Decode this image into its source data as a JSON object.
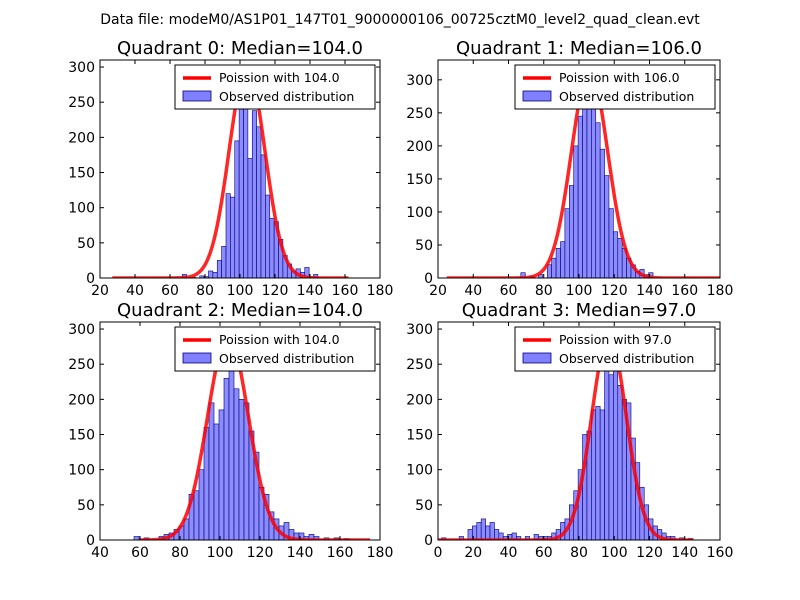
{
  "suptitle": "Data file: modeM0/AS1P01_147T01_9000000106_00725cztM0_level2_quad_clean.evt",
  "colors": {
    "curve": "#ff0000",
    "bar_fill": "#7f7fff",
    "bar_edge": "#00007a"
  },
  "chart_data": [
    {
      "type": "bar",
      "title": "Quadrant 0: Median=104.0",
      "xlim": [
        20,
        180
      ],
      "ylim": [
        0,
        310
      ],
      "xticks": [
        20,
        40,
        60,
        80,
        100,
        120,
        140,
        160,
        180
      ],
      "yticks": [
        0,
        50,
        100,
        150,
        200,
        250,
        300
      ],
      "bin_width": 2.5,
      "legend": {
        "curve_label": "Poission with 104.0",
        "hist_label": "Observed distribution",
        "loc": "upper right"
      },
      "curve": {
        "mean": 104,
        "sigma": 10.2,
        "peak": 300,
        "range": [
          27,
          162
        ]
      },
      "bins": [
        {
          "x": 67,
          "y": 5
        },
        {
          "x": 72,
          "y": 1
        },
        {
          "x": 77,
          "y": 3
        },
        {
          "x": 79.5,
          "y": 2
        },
        {
          "x": 82,
          "y": 10
        },
        {
          "x": 84.5,
          "y": 8
        },
        {
          "x": 87,
          "y": 25
        },
        {
          "x": 89.5,
          "y": 45
        },
        {
          "x": 92,
          "y": 120
        },
        {
          "x": 94.5,
          "y": 115
        },
        {
          "x": 97,
          "y": 195
        },
        {
          "x": 99.5,
          "y": 240
        },
        {
          "x": 102,
          "y": 265
        },
        {
          "x": 104.5,
          "y": 170
        },
        {
          "x": 107,
          "y": 238
        },
        {
          "x": 109.5,
          "y": 215
        },
        {
          "x": 112,
          "y": 175
        },
        {
          "x": 114.5,
          "y": 118
        },
        {
          "x": 117,
          "y": 85
        },
        {
          "x": 119.5,
          "y": 80
        },
        {
          "x": 122,
          "y": 55
        },
        {
          "x": 124.5,
          "y": 32
        },
        {
          "x": 127,
          "y": 20
        },
        {
          "x": 129.5,
          "y": 10
        },
        {
          "x": 132,
          "y": 13
        },
        {
          "x": 134.5,
          "y": 8
        },
        {
          "x": 137,
          "y": 15
        },
        {
          "x": 142,
          "y": 5
        }
      ]
    },
    {
      "type": "bar",
      "title": "Quadrant 1: Median=106.0",
      "xlim": [
        20,
        180
      ],
      "ylim": [
        0,
        330
      ],
      "xticks": [
        20,
        40,
        60,
        80,
        100,
        120,
        140,
        160,
        180
      ],
      "yticks": [
        0,
        50,
        100,
        150,
        200,
        250,
        300
      ],
      "bin_width": 2.5,
      "legend": {
        "curve_label": "Poission with 106.0",
        "hist_label": "Observed distribution",
        "loc": "upper right"
      },
      "curve": {
        "mean": 106,
        "sigma": 10.3,
        "peak": 315,
        "range": [
          25,
          180
        ]
      },
      "bins": [
        {
          "x": 67,
          "y": 8
        },
        {
          "x": 72,
          "y": 2
        },
        {
          "x": 77,
          "y": 5
        },
        {
          "x": 82,
          "y": 20
        },
        {
          "x": 84.5,
          "y": 30
        },
        {
          "x": 87,
          "y": 45
        },
        {
          "x": 89.5,
          "y": 55
        },
        {
          "x": 92,
          "y": 105
        },
        {
          "x": 94.5,
          "y": 140
        },
        {
          "x": 97,
          "y": 200
        },
        {
          "x": 99.5,
          "y": 245
        },
        {
          "x": 102,
          "y": 295
        },
        {
          "x": 104.5,
          "y": 305
        },
        {
          "x": 107,
          "y": 270
        },
        {
          "x": 109.5,
          "y": 235
        },
        {
          "x": 112,
          "y": 195
        },
        {
          "x": 114.5,
          "y": 155
        },
        {
          "x": 117,
          "y": 105
        },
        {
          "x": 119.5,
          "y": 70
        },
        {
          "x": 122,
          "y": 60
        },
        {
          "x": 124.5,
          "y": 45
        },
        {
          "x": 127,
          "y": 30
        },
        {
          "x": 129.5,
          "y": 20
        },
        {
          "x": 132,
          "y": 10
        },
        {
          "x": 134.5,
          "y": 13
        },
        {
          "x": 137,
          "y": 5
        },
        {
          "x": 139.5,
          "y": 8
        }
      ]
    },
    {
      "type": "bar",
      "title": "Quadrant 2: Median=104.0",
      "xlim": [
        40,
        180
      ],
      "ylim": [
        0,
        310
      ],
      "xticks": [
        40,
        60,
        80,
        100,
        120,
        140,
        160,
        180
      ],
      "yticks": [
        0,
        50,
        100,
        150,
        200,
        250,
        300
      ],
      "bin_width": 2.5,
      "legend": {
        "curve_label": "Poission with 104.0",
        "hist_label": "Observed distribution",
        "loc": "upper right"
      },
      "curve": {
        "mean": 104,
        "sigma": 10.2,
        "peak": 290,
        "range": [
          60,
          175
        ]
      },
      "bins": [
        {
          "x": 57,
          "y": 5
        },
        {
          "x": 62,
          "y": 3
        },
        {
          "x": 69.5,
          "y": 5
        },
        {
          "x": 72,
          "y": 8
        },
        {
          "x": 74.5,
          "y": 10
        },
        {
          "x": 77,
          "y": 15
        },
        {
          "x": 79.5,
          "y": 20
        },
        {
          "x": 82,
          "y": 30
        },
        {
          "x": 84.5,
          "y": 65
        },
        {
          "x": 87,
          "y": 70
        },
        {
          "x": 89.5,
          "y": 100
        },
        {
          "x": 92,
          "y": 160
        },
        {
          "x": 94.5,
          "y": 195
        },
        {
          "x": 97,
          "y": 165
        },
        {
          "x": 99.5,
          "y": 185
        },
        {
          "x": 102,
          "y": 230
        },
        {
          "x": 104.5,
          "y": 280
        },
        {
          "x": 107,
          "y": 215
        },
        {
          "x": 109.5,
          "y": 200
        },
        {
          "x": 112,
          "y": 195
        },
        {
          "x": 114.5,
          "y": 155
        },
        {
          "x": 117,
          "y": 125
        },
        {
          "x": 119.5,
          "y": 75
        },
        {
          "x": 122,
          "y": 65
        },
        {
          "x": 124.5,
          "y": 40
        },
        {
          "x": 127,
          "y": 30
        },
        {
          "x": 129.5,
          "y": 20
        },
        {
          "x": 132,
          "y": 25
        },
        {
          "x": 134.5,
          "y": 15
        },
        {
          "x": 137,
          "y": 10
        },
        {
          "x": 139.5,
          "y": 10
        },
        {
          "x": 142,
          "y": 5
        },
        {
          "x": 144.5,
          "y": 8
        },
        {
          "x": 147,
          "y": 5
        },
        {
          "x": 152,
          "y": 3
        },
        {
          "x": 157,
          "y": 3
        },
        {
          "x": 162,
          "y": 2
        }
      ]
    },
    {
      "type": "bar",
      "title": "Quadrant 3: Median=97.0",
      "xlim": [
        0,
        160
      ],
      "ylim": [
        0,
        310
      ],
      "xticks": [
        0,
        20,
        40,
        60,
        80,
        100,
        120,
        140,
        160
      ],
      "yticks": [
        0,
        50,
        100,
        150,
        200,
        250,
        300
      ],
      "bin_width": 2.5,
      "legend": {
        "curve_label": "Poission with 97.0",
        "hist_label": "Observed distribution",
        "loc": "upper right"
      },
      "curve": {
        "mean": 97,
        "sigma": 9.85,
        "peak": 290,
        "range": [
          0,
          145
        ]
      },
      "bins": [
        {
          "x": 2,
          "y": 3
        },
        {
          "x": 12,
          "y": 5
        },
        {
          "x": 17,
          "y": 15
        },
        {
          "x": 19.5,
          "y": 20
        },
        {
          "x": 22,
          "y": 25
        },
        {
          "x": 24.5,
          "y": 30
        },
        {
          "x": 27,
          "y": 20
        },
        {
          "x": 29.5,
          "y": 25
        },
        {
          "x": 32,
          "y": 15
        },
        {
          "x": 34.5,
          "y": 10
        },
        {
          "x": 37,
          "y": 5
        },
        {
          "x": 39.5,
          "y": 8
        },
        {
          "x": 42,
          "y": 10
        },
        {
          "x": 44.5,
          "y": 5
        },
        {
          "x": 49.5,
          "y": 5
        },
        {
          "x": 54.5,
          "y": 8
        },
        {
          "x": 57,
          "y": 5
        },
        {
          "x": 59.5,
          "y": 5
        },
        {
          "x": 62,
          "y": 5
        },
        {
          "x": 64.5,
          "y": 10
        },
        {
          "x": 67,
          "y": 15
        },
        {
          "x": 69.5,
          "y": 25
        },
        {
          "x": 72,
          "y": 30
        },
        {
          "x": 74.5,
          "y": 50
        },
        {
          "x": 77,
          "y": 70
        },
        {
          "x": 79.5,
          "y": 100
        },
        {
          "x": 82,
          "y": 150
        },
        {
          "x": 84.5,
          "y": 155
        },
        {
          "x": 87,
          "y": 185
        },
        {
          "x": 89.5,
          "y": 190
        },
        {
          "x": 92,
          "y": 185
        },
        {
          "x": 94.5,
          "y": 255
        },
        {
          "x": 97,
          "y": 235
        },
        {
          "x": 99.5,
          "y": 260
        },
        {
          "x": 102,
          "y": 220
        },
        {
          "x": 104.5,
          "y": 200
        },
        {
          "x": 107,
          "y": 195
        },
        {
          "x": 109.5,
          "y": 145
        },
        {
          "x": 112,
          "y": 110
        },
        {
          "x": 114.5,
          "y": 75
        },
        {
          "x": 117,
          "y": 50
        },
        {
          "x": 119.5,
          "y": 30
        },
        {
          "x": 122,
          "y": 20
        },
        {
          "x": 124.5,
          "y": 15
        },
        {
          "x": 127,
          "y": 10
        },
        {
          "x": 129.5,
          "y": 5
        },
        {
          "x": 132,
          "y": 5
        },
        {
          "x": 137,
          "y": 3
        },
        {
          "x": 142,
          "y": 2
        }
      ]
    }
  ]
}
